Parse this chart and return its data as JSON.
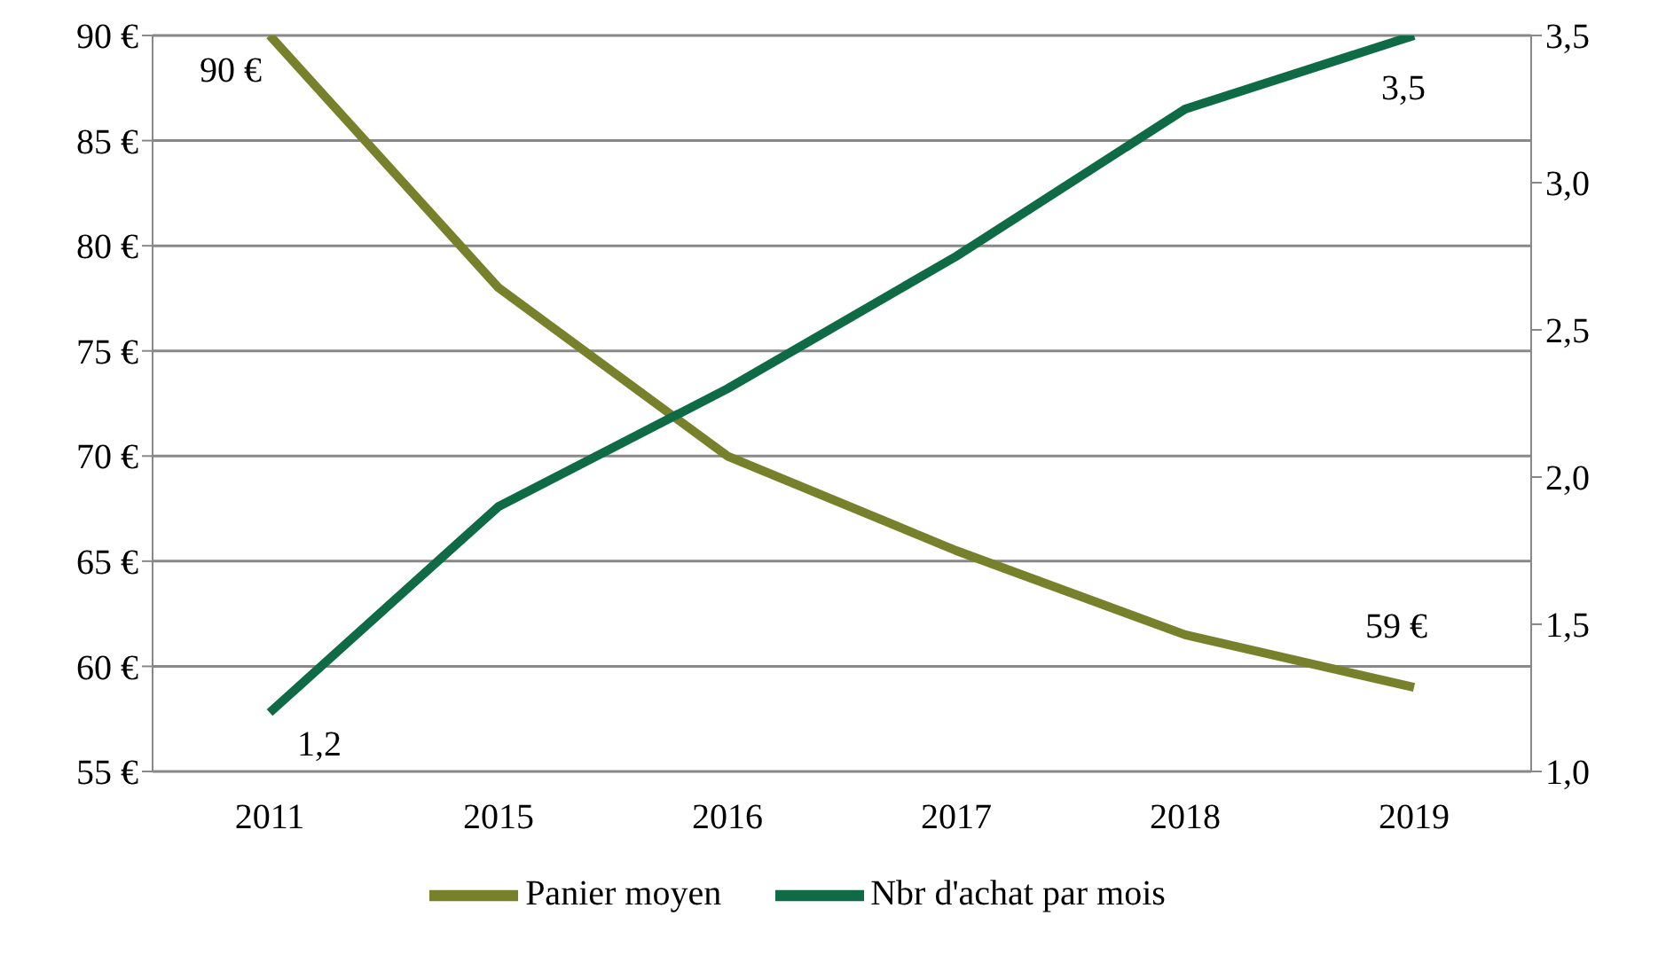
{
  "chart_data": {
    "type": "line",
    "categories": [
      "2011",
      "2015",
      "2016",
      "2017",
      "2018",
      "2019"
    ],
    "series": [
      {
        "name": "Panier moyen",
        "color": "#77802a",
        "values": [
          90,
          78,
          70,
          65.5,
          61.5,
          59
        ],
        "value_labels": [
          "90 €",
          null,
          null,
          null,
          null,
          "59 €"
        ]
      },
      {
        "name": "Nbr d'achat par mois",
        "color": "#0e6b45",
        "axis": "y2",
        "values": [
          1.2,
          1.9,
          2.3,
          2.75,
          3.25,
          3.5
        ],
        "value_labels": [
          "1,2",
          null,
          null,
          null,
          null,
          "3,5"
        ]
      }
    ],
    "ylim": [
      55,
      90
    ],
    "yticks": [
      {
        "value": 55,
        "label": "55 €"
      },
      {
        "value": 60,
        "label": "60 €"
      },
      {
        "value": 65,
        "label": "65 €"
      },
      {
        "value": 70,
        "label": "70 €"
      },
      {
        "value": 75,
        "label": "75 €"
      },
      {
        "value": 80,
        "label": "80 €"
      },
      {
        "value": 85,
        "label": "85 €"
      },
      {
        "value": 90,
        "label": "90 €"
      }
    ],
    "y2lim": [
      1,
      3.5
    ],
    "y2ticks": [
      {
        "value": 1,
        "label": "1,0"
      },
      {
        "value": 1.5,
        "label": "1,5"
      },
      {
        "value": 2,
        "label": "2,0"
      },
      {
        "value": 2.5,
        "label": "2,5"
      },
      {
        "value": 3,
        "label": "3,0"
      },
      {
        "value": 3.5,
        "label": "3,5"
      }
    ],
    "grid": "y",
    "legend": "bottom",
    "marker": "none",
    "line_style": "solid"
  }
}
